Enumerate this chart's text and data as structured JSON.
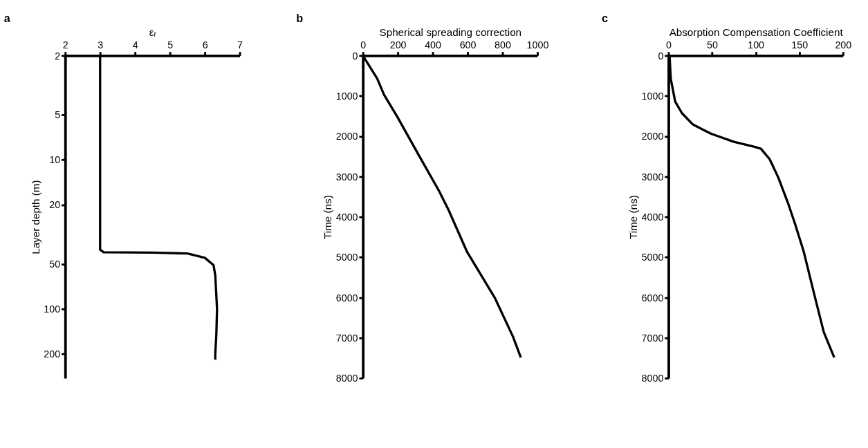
{
  "chart_data": [
    {
      "type": "line",
      "title": "a",
      "xlabel": "εᵣ",
      "ylabel": "Layer depth (m)",
      "log": "y",
      "grid": false,
      "line_style": "solid",
      "xlim": [
        2,
        7
      ],
      "xticks": [
        2,
        3,
        4,
        5,
        6,
        7
      ],
      "ylim": [
        290,
        2
      ],
      "yticks": [
        2,
        5,
        10,
        20,
        50,
        100,
        200
      ],
      "series": [
        {
          "color": "#000000",
          "x": [
            3,
            3,
            3.1,
            4.5,
            5.5,
            6.0,
            6.25,
            6.3,
            6.35,
            6.33,
            6.3,
            6.3
          ],
          "values": [
            2,
            40,
            41.6,
            41.8,
            42.4,
            45.3,
            50.7,
            59.6,
            100,
            148,
            200,
            218
          ]
        }
      ]
    },
    {
      "type": "line",
      "title": "b",
      "xlabel": "Spherical spreading correction",
      "ylabel": "Time (ns)",
      "grid": false,
      "line_style": "solid",
      "xlim": [
        0,
        1000
      ],
      "xticks": [
        0,
        200,
        400,
        600,
        800,
        1000
      ],
      "ylim": [
        8000,
        0
      ],
      "yticks": [
        0,
        1000,
        2000,
        3000,
        4000,
        5000,
        6000,
        7000,
        8000
      ],
      "series": [
        {
          "color": "#000000",
          "x": [
            0,
            82,
            121,
            200,
            319,
            438,
            491,
            596,
            755,
            860,
            905
          ],
          "values": [
            0,
            570,
            970,
            1540,
            2460,
            3370,
            3830,
            4860,
            6000,
            6970,
            7490
          ]
        }
      ]
    },
    {
      "type": "line",
      "title": "c",
      "xlabel": "Absorption Compensation Coefficient",
      "ylabel": "Time (ns)",
      "grid": false,
      "line_style": "solid",
      "xlim": [
        0,
        200
      ],
      "xticks": [
        0,
        50,
        100,
        150,
        200
      ],
      "ylim": [
        8000,
        0
      ],
      "yticks": [
        0,
        1000,
        2000,
        3000,
        4000,
        5000,
        6000,
        7000,
        8000
      ],
      "series": [
        {
          "color": "#000000",
          "x": [
            1.3,
            2.6,
            7.7,
            15.5,
            28,
            49,
            75,
            98,
            106,
            116,
            126,
            137,
            145,
            155,
            168,
            178,
            190
          ],
          "values": [
            0,
            570,
            1140,
            1430,
            1710,
            1940,
            2140,
            2260,
            2310,
            2570,
            3030,
            3660,
            4170,
            4860,
            6000,
            6860,
            7490
          ]
        }
      ]
    }
  ]
}
